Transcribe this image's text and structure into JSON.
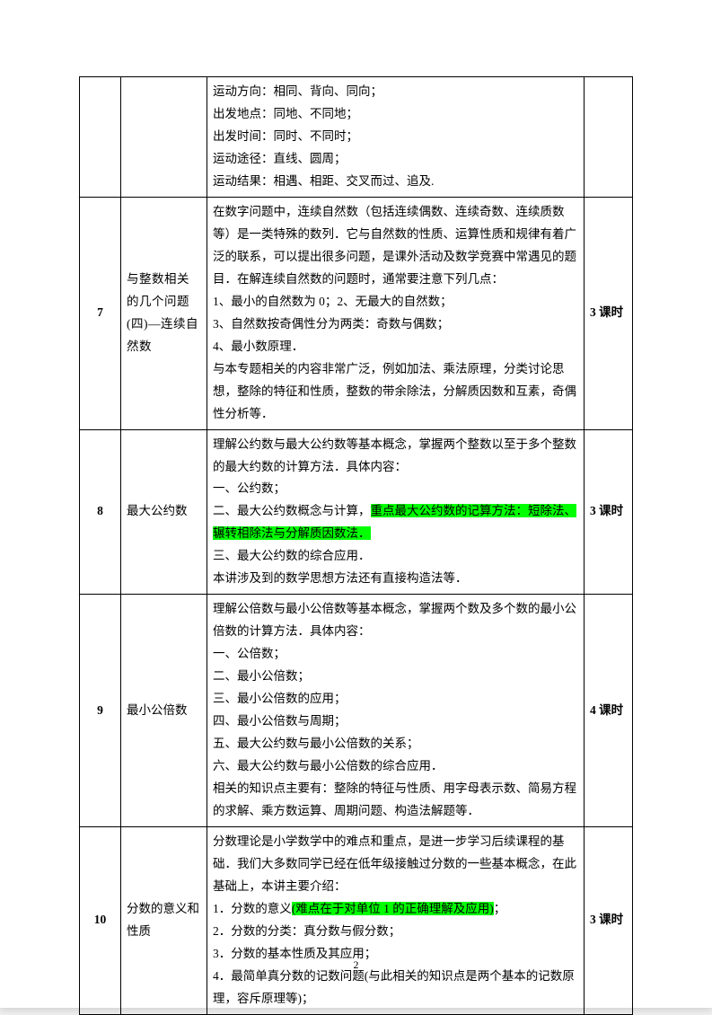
{
  "pageNumber": "2",
  "highlightColor": "#00ff00",
  "rows": [
    {
      "num": "",
      "title": "",
      "content_lines": [
        "运动方向：相同、背向、同向；",
        "出发地点：同地、不同地；",
        "出发时间：同时、不同时；",
        "运动途径：直线、圆周；",
        "运动结果：相遇、相距、交叉而过、追及."
      ],
      "hours": ""
    },
    {
      "num": "7",
      "title": "与整数相关的几个问题(四)—连续自然数",
      "content_lines": [
        "在数字问题中，连续自然数（包括连续偶数、连续奇数、连续质数等）是一类特殊的数列．它与自然数的性质、运算性质和规律有着广泛的联系，可以提出很多问题，是课外活动及数学竞赛中常遇见的题目．在解连续自然数的问题时，通常要注意下列几点：",
        "1、最小的自然数为 0；2、无最大的自然数；",
        "3、自然数按奇偶性分为两类：奇数与偶数；",
        "4、最小数原理．",
        "与本专题相关的内容非常广泛，例如加法、乘法原理，分类讨论思想，整除的特征和性质，整数的带余除法，分解质因数和互素，奇偶性分析等．"
      ],
      "hours": "3 课时"
    },
    {
      "num": "8",
      "title": "最大公约数",
      "content_lines_pre": [
        "理解公约数与最大公约数等基本概念，掌握两个整数以至于多个整数的最大约数的计算方法．具体内容：",
        "一、公约数；"
      ],
      "content_highlight_prefix": "二、最大公约数概念与计算，",
      "content_highlight_text": "重点最大公约数的记算方法：短除法、辗转相除法与分解质因数法．",
      "content_lines_post": [
        "三、最大公约数的综合应用．",
        "本讲涉及到的数学思想方法还有直接构造法等．"
      ],
      "hours": "3 课时"
    },
    {
      "num": "9",
      "title": "最小公倍数",
      "content_lines": [
        "理解公倍数与最小公倍数等基本概念，掌握两个数及多个数的最小公倍数的计算方法．具体内容：",
        "一、公倍数；",
        "二、最小公倍数；",
        "三、最小公倍数的应用；",
        "四、最小公倍数与周期；",
        "五、最大公约数与最小公倍数的关系；",
        "六、最大公约数与最小公倍数的综合应用．",
        "相关的知识点主要有：整除的特征与性质、用字母表示数、简易方程的求解、乘方数运算、周期问题、构造法解题等．"
      ],
      "hours": "4 课时"
    },
    {
      "num": "10",
      "title": "分数的意义和性质",
      "content_lines_pre": [
        "分数理论是小学数学中的难点和重点，是进一步学习后续课程的基础．我们大多数同学已经在低年级接触过分数的一些基本概念，在此基础上，本讲主要介绍："
      ],
      "content_highlight_prefix": "1．分数的意义",
      "content_highlight_text": "(难点在于对单位 1 的正确理解及应用)",
      "content_highlight_suffix": "；",
      "content_lines_post": [
        "2．分数的分类：真分数与假分数；",
        "3．分数的基本性质及其应用；",
        "4．最简单真分数的记数问题(与此相关的知识点是两个基本的记数原理，容斥原理等)；"
      ],
      "hours": "3 课时"
    }
  ]
}
